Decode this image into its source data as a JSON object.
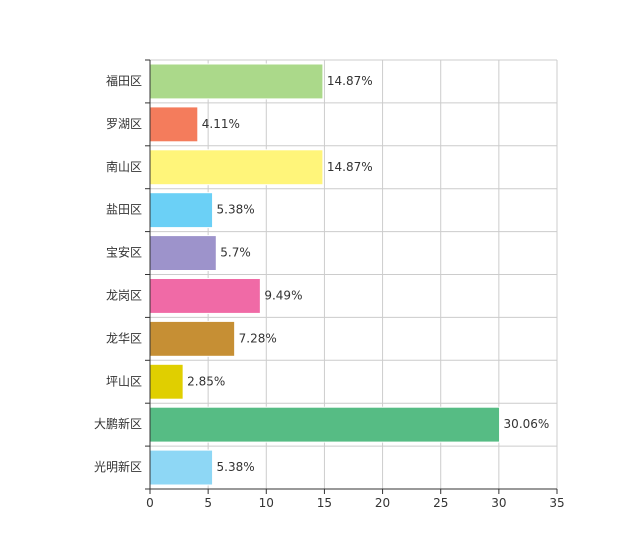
{
  "chart_data": {
    "type": "bar",
    "orientation": "horizontal",
    "categories": [
      "福田区",
      "罗湖区",
      "南山区",
      "盐田区",
      "宝安区",
      "龙岗区",
      "龙华区",
      "坪山区",
      "大鹏新区",
      "光明新区"
    ],
    "values": [
      14.87,
      4.11,
      14.87,
      5.38,
      5.7,
      9.49,
      7.28,
      2.85,
      30.06,
      5.38
    ],
    "value_labels": [
      "14.87%",
      "4.11%",
      "14.87%",
      "5.38%",
      "5.7%",
      "9.49%",
      "7.28%",
      "2.85%",
      "30.06%",
      "5.38%"
    ],
    "colors": [
      "#abd98a",
      "#f47c5c",
      "#fff57a",
      "#6bd0f6",
      "#9d93cb",
      "#f06aa6",
      "#c68f34",
      "#e0cf00",
      "#56bc84",
      "#8ed7f5"
    ],
    "xlim": [
      0,
      35
    ],
    "xticks": [
      0,
      5,
      10,
      15,
      20,
      25,
      30,
      35
    ],
    "grid": true,
    "title": "",
    "xlabel": "",
    "ylabel": ""
  }
}
